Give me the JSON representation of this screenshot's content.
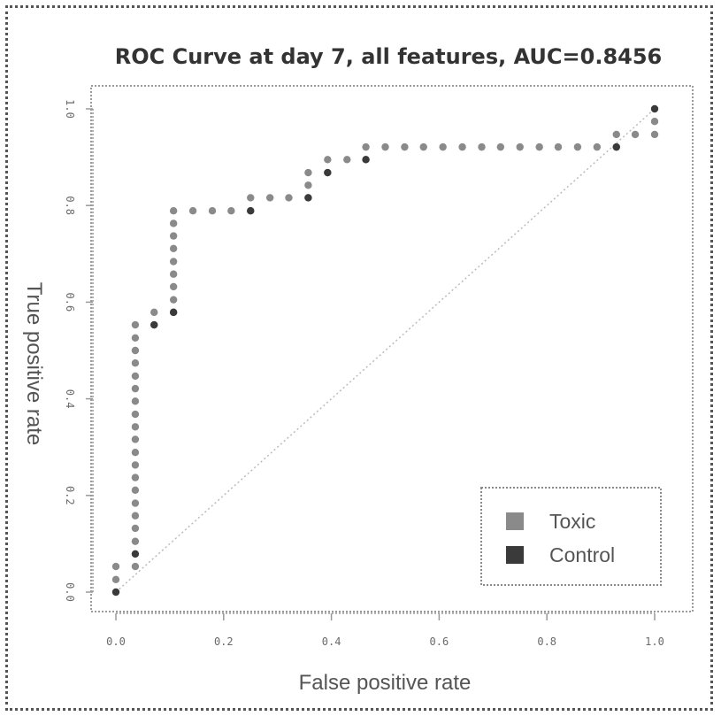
{
  "chart_data": {
    "type": "scatter",
    "title": "ROC Curve at day 7, all features, AUC=0.8456",
    "xlabel": "False positive rate",
    "ylabel": "True positive rate",
    "xlim": [
      0,
      1
    ],
    "ylim": [
      0,
      1
    ],
    "xticks": [
      "0.0",
      "0.2",
      "0.4",
      "0.6",
      "0.8",
      "1.0"
    ],
    "yticks": [
      "0.0",
      "0.2",
      "0.4",
      "0.6",
      "0.8",
      "1.0"
    ],
    "grid": false,
    "legend_position": "bottom-right",
    "reference_line": {
      "from": [
        0,
        0
      ],
      "to": [
        1,
        1
      ],
      "style": "dotted"
    },
    "series": [
      {
        "name": "Toxic",
        "color": "#8a8a8a",
        "points": [
          [
            0,
            0.026
          ],
          [
            0,
            0.053
          ],
          [
            0.036,
            0.053
          ],
          [
            0.036,
            0.105
          ],
          [
            0.036,
            0.132
          ],
          [
            0.036,
            0.158
          ],
          [
            0.036,
            0.184
          ],
          [
            0.036,
            0.211
          ],
          [
            0.036,
            0.237
          ],
          [
            0.036,
            0.263
          ],
          [
            0.036,
            0.289
          ],
          [
            0.036,
            0.316
          ],
          [
            0.036,
            0.342
          ],
          [
            0.036,
            0.368
          ],
          [
            0.036,
            0.395
          ],
          [
            0.036,
            0.421
          ],
          [
            0.036,
            0.447
          ],
          [
            0.036,
            0.474
          ],
          [
            0.036,
            0.5
          ],
          [
            0.036,
            0.526
          ],
          [
            0.036,
            0.553
          ],
          [
            0.071,
            0.553
          ],
          [
            0.071,
            0.579
          ],
          [
            0.107,
            0.579
          ],
          [
            0.107,
            0.605
          ],
          [
            0.107,
            0.632
          ],
          [
            0.107,
            0.658
          ],
          [
            0.107,
            0.684
          ],
          [
            0.107,
            0.711
          ],
          [
            0.107,
            0.737
          ],
          [
            0.107,
            0.763
          ],
          [
            0.107,
            0.789
          ],
          [
            0.143,
            0.789
          ],
          [
            0.179,
            0.789
          ],
          [
            0.214,
            0.789
          ],
          [
            0.25,
            0.789
          ],
          [
            0.25,
            0.816
          ],
          [
            0.286,
            0.816
          ],
          [
            0.321,
            0.816
          ],
          [
            0.357,
            0.816
          ],
          [
            0.357,
            0.842
          ],
          [
            0.357,
            0.868
          ],
          [
            0.393,
            0.868
          ],
          [
            0.393,
            0.895
          ],
          [
            0.429,
            0.895
          ],
          [
            0.464,
            0.895
          ],
          [
            0.464,
            0.921
          ],
          [
            0.5,
            0.921
          ],
          [
            0.536,
            0.921
          ],
          [
            0.571,
            0.921
          ],
          [
            0.607,
            0.921
          ],
          [
            0.643,
            0.921
          ],
          [
            0.679,
            0.921
          ],
          [
            0.714,
            0.921
          ],
          [
            0.75,
            0.921
          ],
          [
            0.786,
            0.921
          ],
          [
            0.821,
            0.921
          ],
          [
            0.857,
            0.921
          ],
          [
            0.893,
            0.921
          ],
          [
            0.929,
            0.921
          ],
          [
            0.929,
            0.947
          ],
          [
            0.964,
            0.947
          ],
          [
            1.0,
            0.947
          ],
          [
            1.0,
            0.974
          ]
        ]
      },
      {
        "name": "Control",
        "color": "#3a3a3a",
        "points": [
          [
            0,
            0
          ],
          [
            0.036,
            0.079
          ],
          [
            0.071,
            0.553
          ],
          [
            0.107,
            0.579
          ],
          [
            0.25,
            0.789
          ],
          [
            0.357,
            0.816
          ],
          [
            0.393,
            0.868
          ],
          [
            0.464,
            0.895
          ],
          [
            0.929,
            0.921
          ],
          [
            1.0,
            1.0
          ]
        ]
      }
    ]
  },
  "legend": {
    "toxic_label": "Toxic",
    "control_label": "Control"
  }
}
